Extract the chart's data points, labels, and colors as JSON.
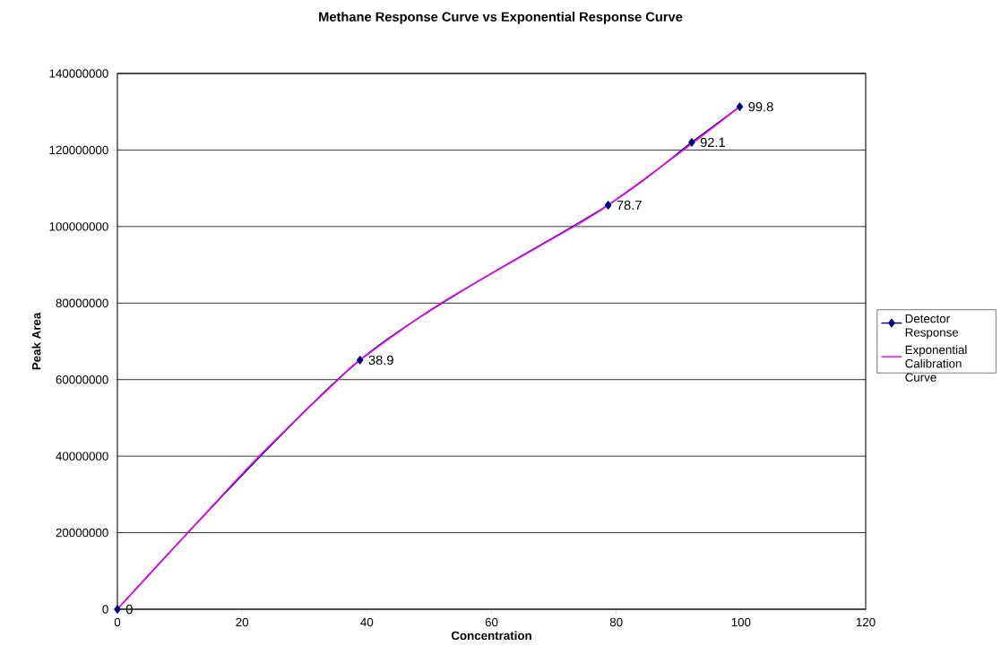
{
  "chart_data": {
    "type": "line",
    "title": "Methane Response Curve vs Exponential Response Curve",
    "xlabel": "Concentration",
    "ylabel": "Peak Area",
    "xlim": [
      0,
      120
    ],
    "xticks": [
      0,
      20,
      40,
      60,
      80,
      100,
      120
    ],
    "ylim": [
      0,
      140000000
    ],
    "yticks": [
      0,
      20000000,
      40000000,
      60000000,
      80000000,
      100000000,
      120000000,
      140000000
    ],
    "grid": "y",
    "legend": "right",
    "annotations": [
      {
        "text": "0",
        "x": 0,
        "y": 0
      },
      {
        "text": "38.9",
        "x": 38.9,
        "y": 65100000
      },
      {
        "text": "78.7",
        "x": 78.7,
        "y": 105600000
      },
      {
        "text": "92.1",
        "x": 92.1,
        "y": 122000000
      },
      {
        "text": "99.8",
        "x": 99.8,
        "y": 131300000
      }
    ],
    "series": [
      {
        "name": "Detector Response",
        "color": "#000080",
        "marker": "diamond",
        "x": [
          0,
          38.9,
          78.7,
          92.1,
          99.8
        ],
        "values": [
          0,
          65100000,
          105600000,
          122000000,
          131300000
        ]
      },
      {
        "name": "Exponential Calibration Curve",
        "color": "#ff00ff",
        "marker": "none",
        "x": [
          0,
          11.3,
          22.7,
          35.4,
          38.9,
          51.9,
          73.2,
          78.7,
          90.8,
          99.8
        ],
        "values": [
          0,
          20000000,
          40000000,
          60000000,
          65100000,
          80000000,
          100000000,
          105600000,
          120000000,
          131300000
        ]
      }
    ]
  }
}
